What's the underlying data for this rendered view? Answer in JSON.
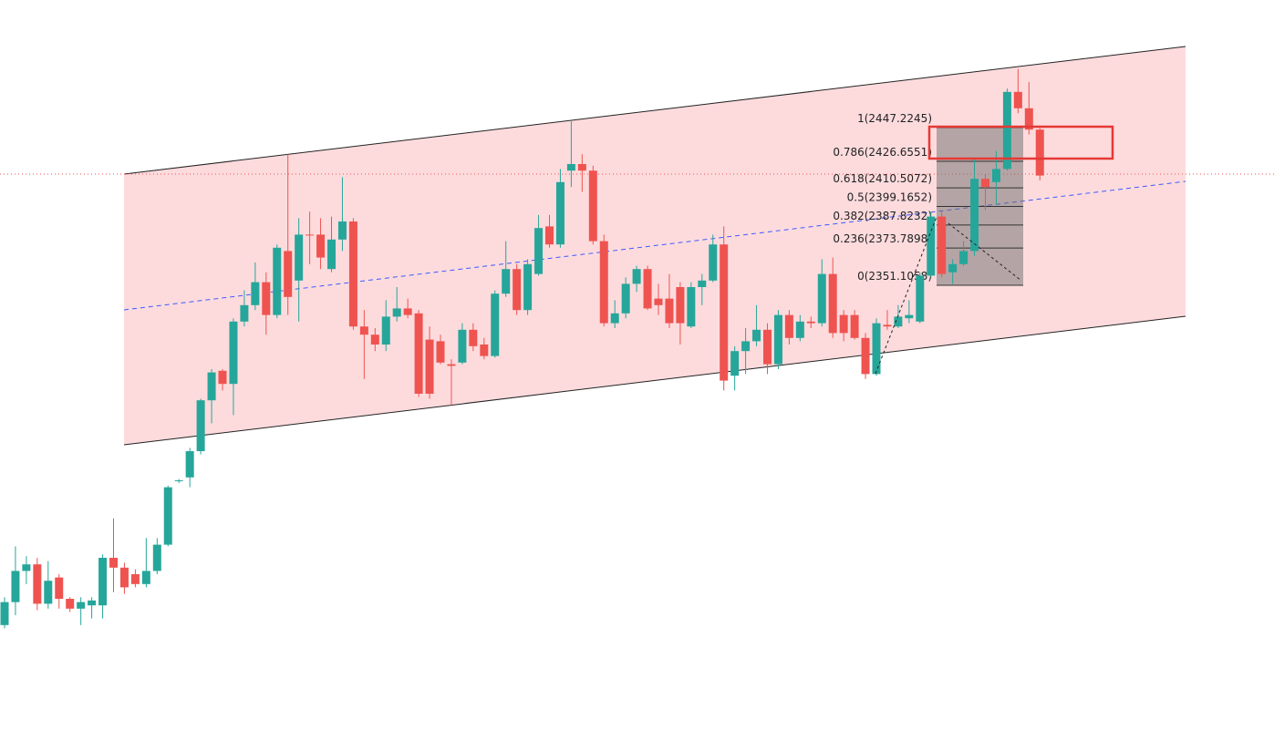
{
  "chart_data": {
    "type": "candlestick",
    "up_color": "#26a69a",
    "down_color": "#ef5350",
    "open": [
      2144,
      2158,
      2177,
      2181,
      2157,
      2173,
      2160,
      2154,
      2156,
      2156,
      2185,
      2179,
      2175,
      2169,
      2177,
      2193,
      2231.7,
      2234,
      2250,
      2281,
      2299,
      2291,
      2329,
      2339,
      2353,
      2333,
      2372,
      2354,
      2382,
      2382,
      2361,
      2379,
      2390,
      2326,
      2321,
      2315,
      2332,
      2337,
      2334,
      2318,
      2317,
      2303,
      2304,
      2324,
      2315,
      2308,
      2346,
      2361,
      2336,
      2358,
      2387,
      2376,
      2421,
      2425,
      2421,
      2378,
      2328,
      2334,
      2352,
      2361,
      2343,
      2343,
      2350,
      2326,
      2350,
      2354,
      2376,
      2296,
      2311,
      2317,
      2324,
      2303,
      2333,
      2319,
      2329,
      2328,
      2358,
      2333,
      2333,
      2319,
      2297,
      2327,
      2326,
      2331,
      2329,
      2357,
      2393,
      2359,
      2364,
      2372,
      2416,
      2414,
      2422,
      2469,
      2459,
      2446
    ],
    "high": [
      2161,
      2192,
      2186,
      2185,
      2183,
      2175,
      2161,
      2161,
      2161,
      2187,
      2209,
      2182,
      2178,
      2197,
      2197,
      2229,
      2233,
      2252,
      2282,
      2300,
      2300,
      2331,
      2348,
      2365,
      2359,
      2376,
      2431,
      2392,
      2396,
      2392,
      2393,
      2417,
      2392,
      2336,
      2325,
      2342,
      2350,
      2343,
      2336,
      2326,
      2321,
      2306,
      2328,
      2328,
      2319,
      2348,
      2378,
      2364,
      2367,
      2394,
      2394,
      2422,
      2451,
      2431,
      2424,
      2382,
      2342,
      2356,
      2363,
      2363,
      2352,
      2358,
      2353,
      2353,
      2358,
      2382,
      2387,
      2314,
      2325,
      2339,
      2328,
      2336,
      2336,
      2333,
      2332,
      2367,
      2368,
      2336,
      2336,
      2322,
      2331,
      2336,
      2339,
      2342,
      2359,
      2396,
      2396,
      2367,
      2378,
      2428,
      2419,
      2433,
      2471,
      2483,
      2475,
      2447
    ],
    "low": [
      2142,
      2150,
      2169,
      2153,
      2154,
      2154,
      2152,
      2144,
      2148,
      2148,
      2164,
      2163,
      2167,
      2167,
      2175,
      2192,
      2230.6,
      2228,
      2248,
      2267,
      2287,
      2272,
      2326,
      2336,
      2321,
      2331,
      2333,
      2329,
      2364,
      2361,
      2359,
      2372,
      2324,
      2294,
      2311,
      2311,
      2329,
      2331,
      2283,
      2282,
      2303,
      2278,
      2303,
      2311,
      2306,
      2307,
      2344,
      2333,
      2333,
      2357,
      2374,
      2374,
      2411,
      2408,
      2376,
      2326,
      2325,
      2331,
      2347,
      2336,
      2333,
      2325,
      2315,
      2325,
      2339,
      2353,
      2287,
      2287,
      2297,
      2314,
      2297,
      2300,
      2315,
      2317,
      2325,
      2326,
      2319,
      2317,
      2318,
      2294,
      2296,
      2324,
      2325,
      2328,
      2328,
      2356,
      2356,
      2352,
      2363,
      2369,
      2397,
      2400,
      2421,
      2456,
      2443,
      2415
    ],
    "close": [
      2158,
      2177,
      2181,
      2157,
      2171,
      2160,
      2154,
      2158,
      2159,
      2185,
      2179,
      2167,
      2169,
      2177,
      2193,
      2228,
      2232.2,
      2250,
      2281,
      2298,
      2291,
      2329,
      2339,
      2353,
      2333,
      2374,
      2344,
      2382,
      2381.5,
      2368,
      2379,
      2390,
      2326,
      2321,
      2315,
      2332,
      2337,
      2333,
      2285,
      2285,
      2304,
      2302,
      2324,
      2314,
      2308,
      2346,
      2361,
      2336,
      2364,
      2386,
      2376,
      2414,
      2425,
      2421,
      2378,
      2328,
      2334,
      2352,
      2361,
      2337,
      2339,
      2328,
      2328,
      2350,
      2354,
      2376,
      2293,
      2311,
      2317,
      2324,
      2303,
      2333,
      2319,
      2329,
      2328,
      2358,
      2322,
      2322,
      2319,
      2297,
      2328,
      2326,
      2332,
      2333,
      2357,
      2393,
      2358,
      2364,
      2372,
      2416,
      2411,
      2422,
      2469,
      2459,
      2446,
      2418
    ],
    "fib_levels": [
      {
        "value": 2447.2245,
        "label": "1(2447.2245)"
      },
      {
        "value": 2426.6551,
        "label": "0.786(2426.6551)"
      },
      {
        "value": 2410.5072,
        "label": "0.618(2410.5072)"
      },
      {
        "value": 2399.1652,
        "label": "0.5(2399.1652)"
      },
      {
        "value": 2387.8232,
        "label": "0.382(2387.8232)"
      },
      {
        "value": 2373.7898,
        "label": "0.236(2373.7898)"
      },
      {
        "value": 2351.1058,
        "label": "0(2351.1058)"
      }
    ]
  }
}
